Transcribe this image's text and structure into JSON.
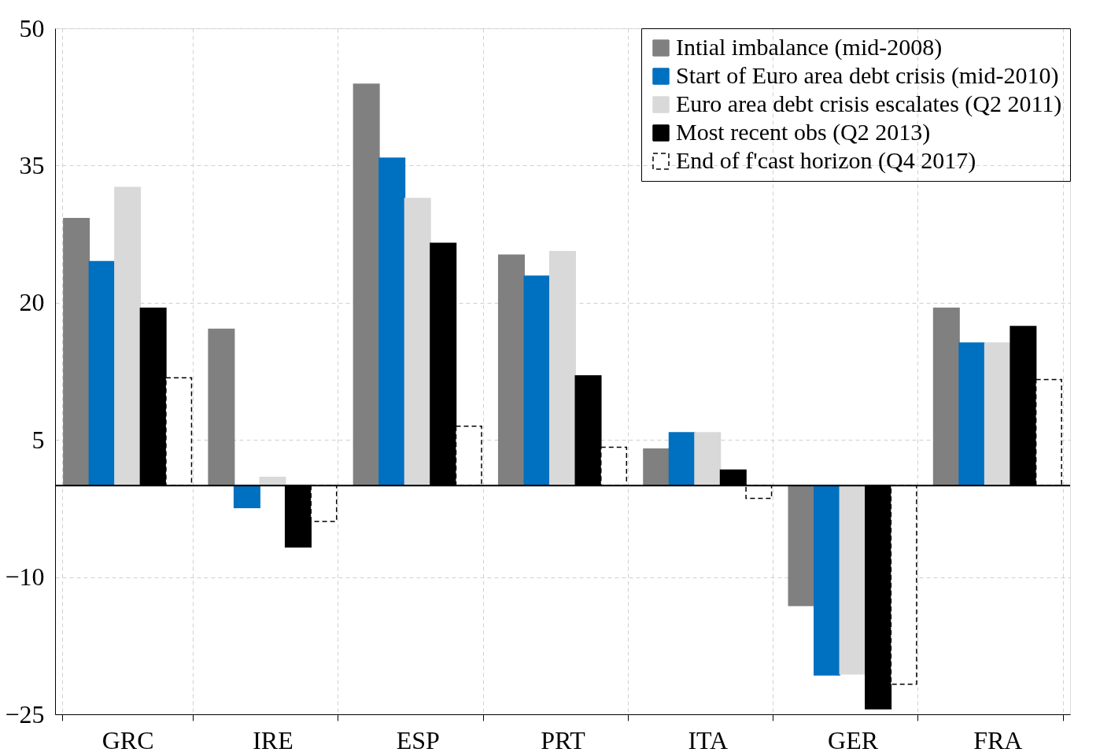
{
  "chart_data": {
    "type": "bar",
    "categories": [
      "GRC",
      "IRE",
      "ESP",
      "PRT",
      "ITA",
      "GER",
      "FRA"
    ],
    "series": [
      {
        "name": "Intial imbalance (mid-2008)",
        "color": "#808080",
        "values": [
          29.2,
          17.1,
          43.9,
          25.2,
          4.0,
          -13.1,
          19.4
        ]
      },
      {
        "name": "Start of Euro area debt crisis (mid-2010)",
        "color": "#0070c0",
        "values": [
          24.5,
          -2.4,
          35.8,
          22.9,
          5.8,
          -20.7,
          15.6
        ]
      },
      {
        "name": "Euro area debt crisis escalates (Q2 2011)",
        "color": "#d9d9d9",
        "values": [
          32.6,
          0.9,
          31.4,
          25.6,
          5.8,
          -20.6,
          15.6
        ]
      },
      {
        "name": "Most recent obs (Q2 2013)",
        "color": "#000000",
        "values": [
          19.4,
          -6.7,
          26.5,
          12.0,
          1.7,
          -24.4,
          17.4
        ]
      },
      {
        "name": "End of f'cast horizon (Q4 2017)",
        "color": "#ffffff",
        "line_style": "dashed",
        "values": [
          11.8,
          -3.9,
          6.5,
          4.2,
          -1.4,
          -21.7,
          11.6
        ]
      }
    ],
    "ylim": [
      -25,
      50
    ],
    "yticks": [
      -25,
      -10,
      5,
      20,
      35,
      50
    ],
    "grid": true,
    "legend": "top right",
    "ref_lines": [
      {
        "axis": "y",
        "value": 0,
        "color": "#000000"
      }
    ]
  }
}
